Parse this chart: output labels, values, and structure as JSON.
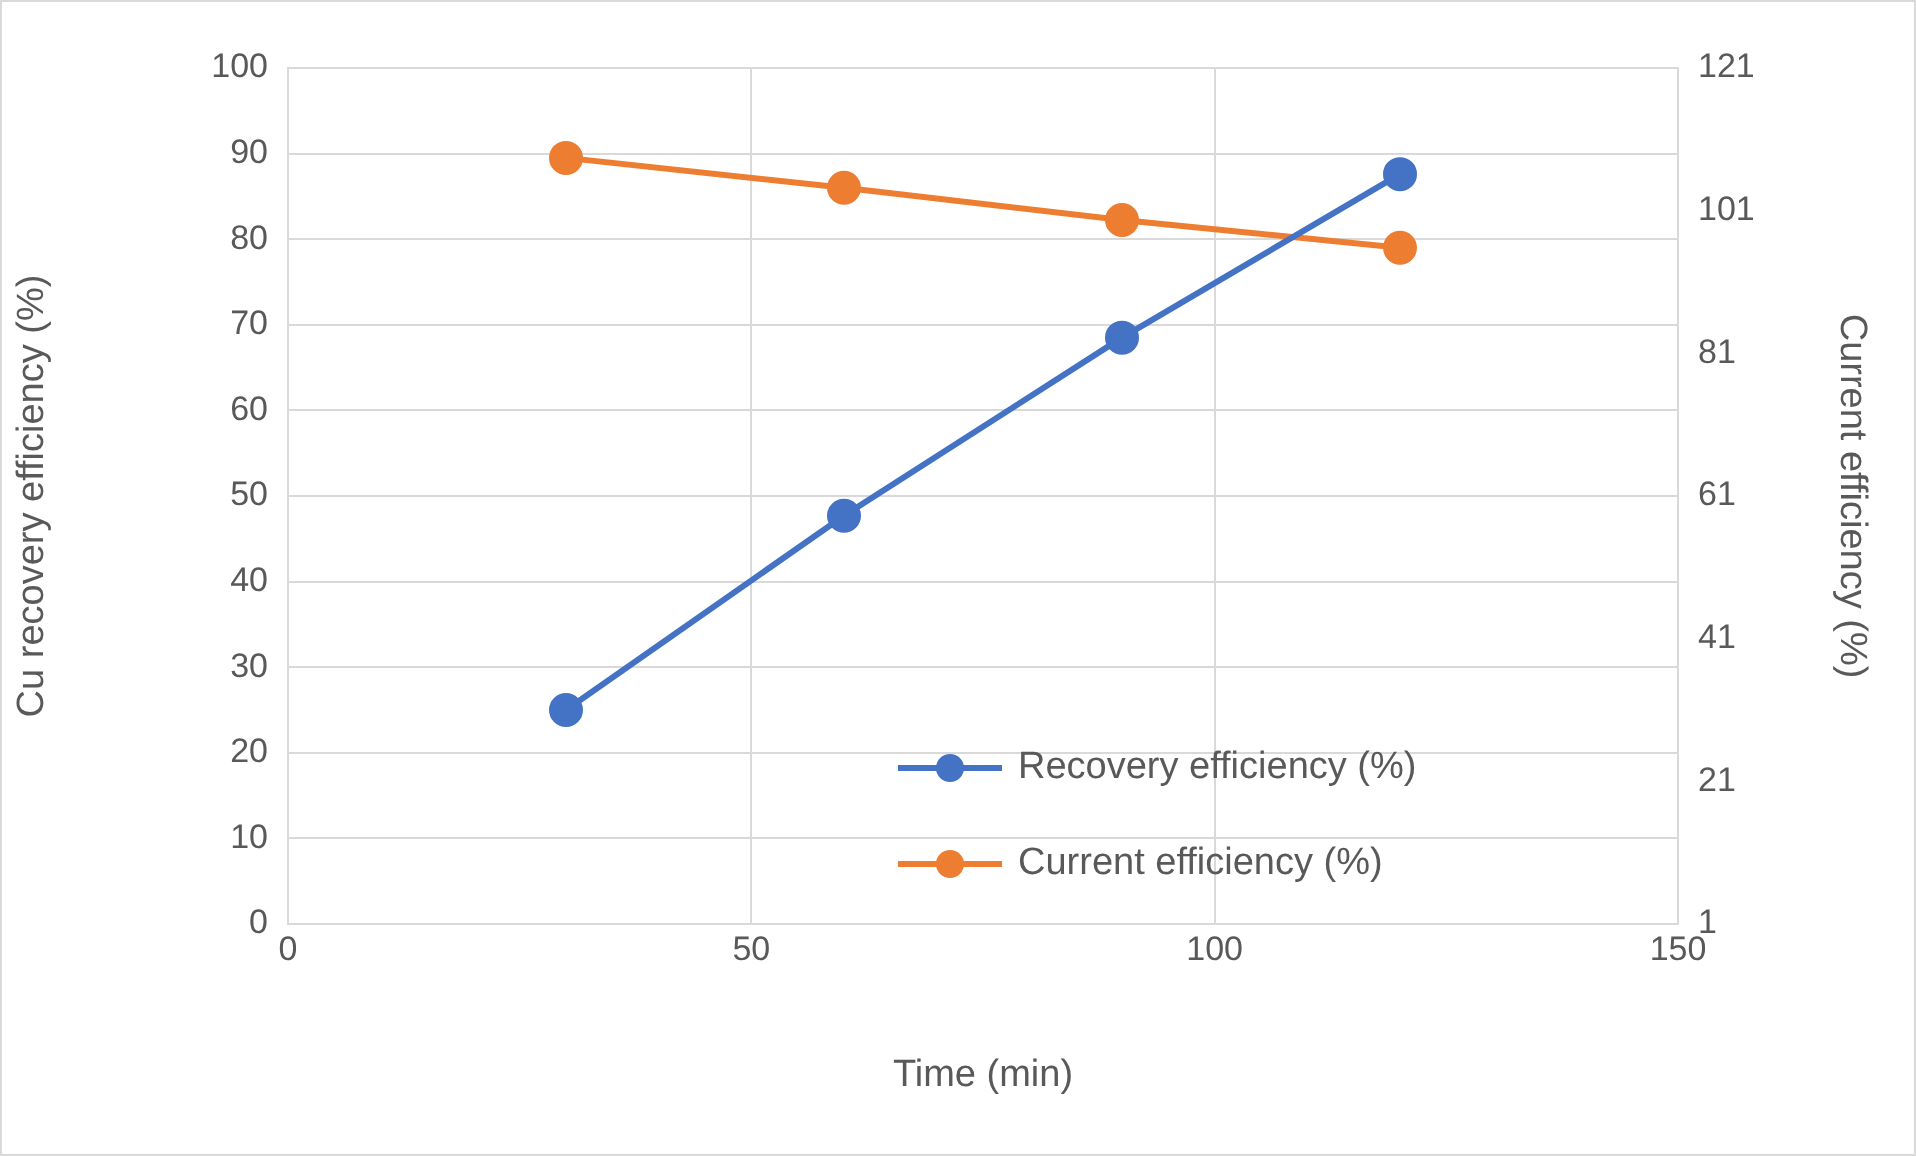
{
  "chart_data": {
    "type": "line",
    "xlabel": "Time (min)",
    "ylabel": "Cu recovery efficiency (%)",
    "y2label": "Current efficiency (%)",
    "x": [
      30,
      60,
      90,
      120
    ],
    "series": [
      {
        "name": "Recovery efficiency (%)",
        "color": "#4472c4",
        "values": [
          25,
          47.7,
          68.5,
          87.6
        ]
      },
      {
        "name": "Current efficiency (%)",
        "color": "#ed7d31",
        "values": [
          108.4,
          104.2,
          99.7,
          95.8
        ],
        "axis": "y2"
      }
    ],
    "xlim": [
      0,
      150
    ],
    "xticks": [
      0,
      50,
      100,
      150
    ],
    "ylim": [
      0,
      100
    ],
    "yticks": [
      0,
      10,
      20,
      30,
      40,
      50,
      60,
      70,
      80,
      90,
      100
    ],
    "y2lim": [
      1,
      121
    ],
    "y2ticks": [
      1,
      21,
      41,
      61,
      81,
      101,
      121
    ],
    "grid": true,
    "legend": "bottom right",
    "marker": "circle",
    "line_style": "solid"
  }
}
